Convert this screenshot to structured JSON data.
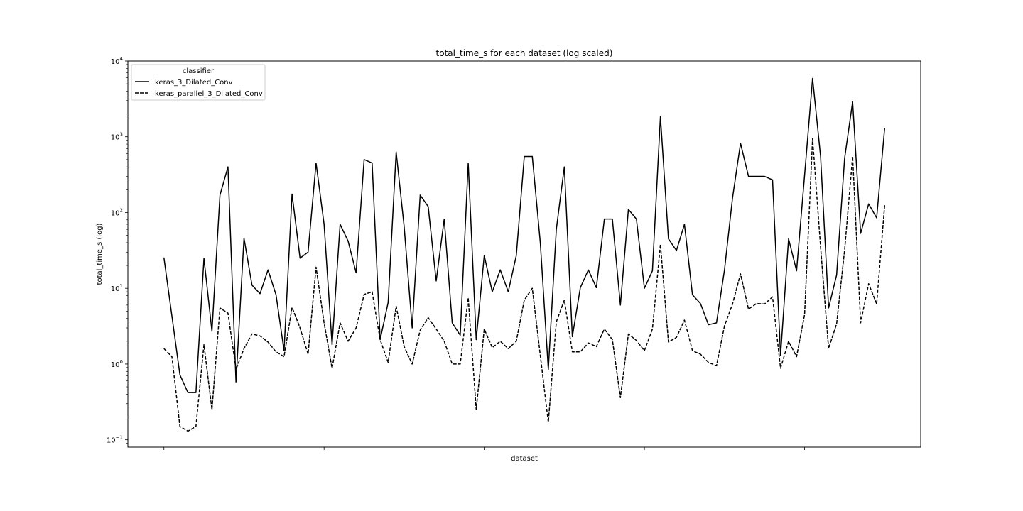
{
  "chart_data": {
    "type": "line",
    "title": "total_time_s for each dataset (log scaled)",
    "xlabel": "dataset",
    "ylabel": "total_time_s (log)",
    "yscale": "log",
    "ylim": [
      0.08,
      10000
    ],
    "y_ticks": [
      0.1,
      1,
      10,
      100,
      1000,
      10000
    ],
    "y_tick_labels": [
      {
        "base": "10",
        "exp": "−1"
      },
      {
        "base": "10",
        "exp": "0"
      },
      {
        "base": "10",
        "exp": "1"
      },
      {
        "base": "10",
        "exp": "2"
      },
      {
        "base": "10",
        "exp": "3"
      },
      {
        "base": "10",
        "exp": "4"
      }
    ],
    "x_ticks": [
      0,
      20,
      40,
      60,
      80
    ],
    "xlim": [
      -4.5,
      94.5
    ],
    "grid": false,
    "legend": {
      "title": "classifier",
      "placement": "top-left"
    },
    "colors": {
      "line": "#000000",
      "frame": "#000000",
      "legend_border": "#cccccc"
    },
    "series": [
      {
        "name": "keras_3_Dilated_Conv",
        "style": "solid",
        "values": [
          25.5,
          4.3,
          0.72,
          0.42,
          0.42,
          24.8,
          2.7,
          170,
          400,
          0.58,
          46,
          11,
          8.5,
          17.5,
          8.2,
          1.5,
          175,
          25,
          30,
          450,
          70,
          1.8,
          70,
          42,
          16,
          500,
          450,
          2.1,
          6.5,
          630,
          65,
          3,
          170,
          120,
          12.5,
          82,
          3.5,
          2.4,
          450,
          2.1,
          27,
          9,
          17.5,
          9,
          27,
          550,
          550,
          40,
          0.85,
          60,
          400,
          2.3,
          10.2,
          17.5,
          10.2,
          82,
          82,
          6,
          110,
          82,
          10,
          17,
          1850,
          45,
          31.5,
          70,
          8.2,
          6.3,
          3.3,
          3.5,
          17.5,
          155,
          820,
          300,
          300,
          300,
          270,
          1.3,
          45,
          17,
          310,
          5900,
          550,
          5.5,
          15,
          520,
          2900,
          53,
          130,
          85,
          1300
        ]
      },
      {
        "name": "keras_parallel_3_Dilated_Conv",
        "style": "dashed",
        "values": [
          1.6,
          1.25,
          0.15,
          0.13,
          0.15,
          1.8,
          0.25,
          5.5,
          4.7,
          0.85,
          1.6,
          2.5,
          2.35,
          1.95,
          1.45,
          1.25,
          5.6,
          3,
          1.35,
          19,
          3.5,
          0.88,
          3.5,
          2,
          3,
          8.3,
          9,
          2.1,
          1.05,
          5.8,
          1.7,
          1,
          2.8,
          4.1,
          2.9,
          2,
          1,
          1,
          7.5,
          0.25,
          2.9,
          1.65,
          2,
          1.6,
          2,
          7,
          10,
          1.3,
          0.17,
          3.6,
          7,
          1.45,
          1.45,
          1.9,
          1.7,
          2.9,
          2.1,
          0.36,
          2.5,
          2.05,
          1.5,
          2.9,
          38,
          1.95,
          2.25,
          3.8,
          1.5,
          1.35,
          1.05,
          0.95,
          3.2,
          6.2,
          15.5,
          5.3,
          6.3,
          6.2,
          7.7,
          0.88,
          2,
          1.25,
          4.5,
          950,
          35,
          1.6,
          3.4,
          32,
          550,
          3.5,
          11.5,
          6.2,
          125
        ]
      }
    ]
  }
}
